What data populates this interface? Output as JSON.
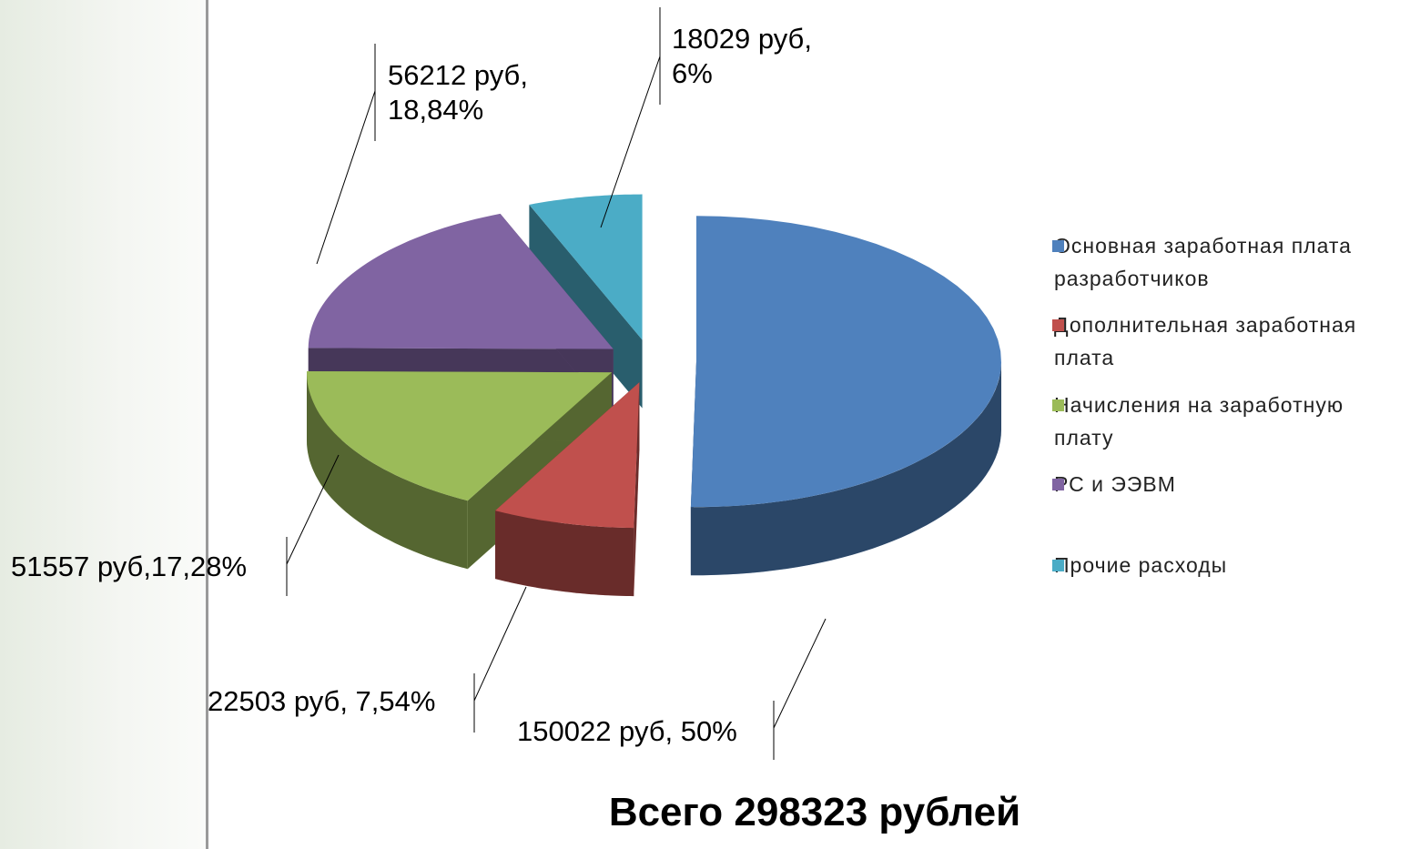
{
  "chart_data": {
    "type": "pie",
    "title": "Всего 298323 рублей",
    "categories": [
      "Основная заработная плата разработчиков",
      "Дополнительная заработная плата",
      "Начисления на заработную плату",
      "РС и ЭЭВМ",
      "Прочие расходы"
    ],
    "values": [
      150022,
      22503,
      51557,
      56212,
      18029
    ],
    "value_labels": [
      "150022 руб, 50%",
      "22503 руб, 7,54%",
      "51557 руб,17,28%",
      "56212 руб, 18,84%",
      "18029  руб, 6%"
    ],
    "colors": [
      "#4f81bd",
      "#c0504d",
      "#9bbb59",
      "#8064a2",
      "#4bacc6"
    ],
    "legend": "right"
  }
}
